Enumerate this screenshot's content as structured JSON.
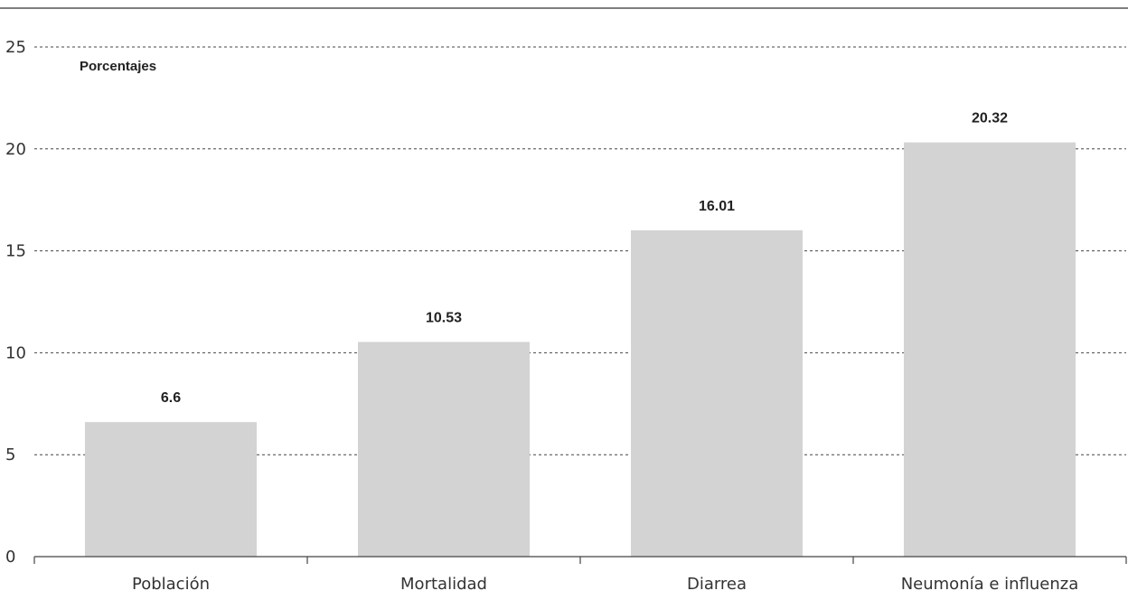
{
  "chart_data": {
    "type": "bar",
    "title": "",
    "unit_label": "Porcentajes",
    "xlabel": "",
    "ylabel": "",
    "categories": [
      "Población",
      "Mortalidad",
      "Diarrea",
      "Neumonía e influenza"
    ],
    "values": [
      6.6,
      10.53,
      16.01,
      20.32
    ],
    "value_labels": [
      "6.6",
      "10.53",
      "16.01",
      "20.32"
    ],
    "ylim": [
      0,
      25
    ],
    "yticks": [
      0,
      5,
      10,
      15,
      20,
      25
    ],
    "ytick_labels": [
      "0",
      "5",
      "10",
      "15",
      "20",
      "25"
    ],
    "grid": true,
    "legend": "none",
    "colors": {
      "bar": "#d3d3d4",
      "grid": "#444444",
      "axis": "#444444",
      "top_rule": "#555555"
    }
  }
}
